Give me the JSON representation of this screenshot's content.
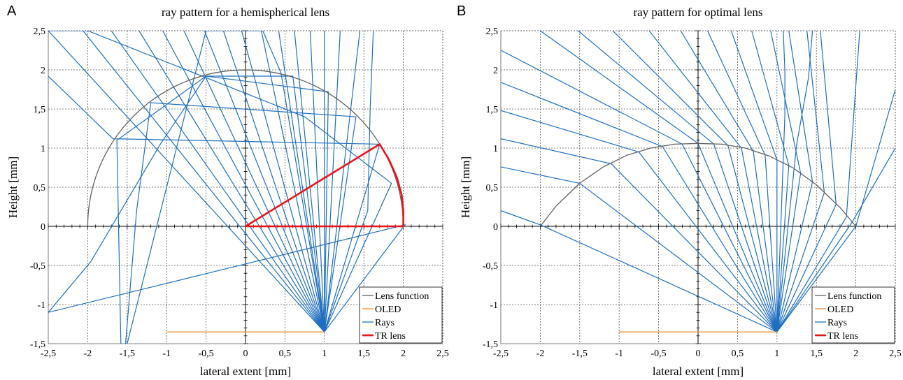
{
  "panels": [
    {
      "letter": "A",
      "title": "ray pattern for a hemispherical lens"
    },
    {
      "letter": "B",
      "title": "ray pattern for optimal lens"
    }
  ],
  "colors": {
    "lens_function": "#606060",
    "oled": "#e8913a",
    "rays": "#1f6fbf",
    "tr_lens": "#e8141a"
  },
  "chart_data": [
    {
      "type": "line",
      "title": "ray pattern for a hemispherical lens",
      "xlabel": "lateral extent [mm]",
      "ylabel": "Height [mm]",
      "xlim": [
        -2.5,
        2.5
      ],
      "ylim": [
        -1.5,
        2.5
      ],
      "xticks": [
        -2.5,
        -2,
        -1.5,
        -1,
        -0.5,
        0,
        0.5,
        1,
        1.5,
        2,
        2.5
      ],
      "xtick_labels": [
        "-2,5",
        "-2",
        "-1,5",
        "-1",
        "-0,5",
        "0",
        "0,5",
        "1",
        "1,5",
        "2",
        "2,5"
      ],
      "yticks": [
        -1.5,
        -1,
        -0.5,
        0,
        0.5,
        1,
        1.5,
        2,
        2.5
      ],
      "ytick_labels": [
        "-1,5",
        "-1",
        "-0,5",
        "0",
        "0,5",
        "1",
        "1,5",
        "2",
        "2,5"
      ],
      "grid": true,
      "legend_position": "bottom-right",
      "legend": [
        "Lens function",
        "OLED",
        "Rays",
        "TR lens"
      ],
      "source": [
        1,
        -1.35
      ],
      "lens_function": {
        "shape": "semicircle",
        "center": [
          0,
          0
        ],
        "radius": 2
      },
      "oled": {
        "x": [
          -1,
          1
        ],
        "y": [
          -1.35,
          -1.35
        ]
      },
      "tr_lens": {
        "x": [
          0,
          2,
          2,
          1.98,
          1.92,
          1.82,
          1.7,
          0
        ],
        "y": [
          0,
          0,
          0.2,
          0.4,
          0.62,
          0.85,
          1.05,
          0
        ]
      },
      "rays": [
        {
          "x": [
            1,
            2.02,
            -2.5
          ],
          "y": [
            -1.35,
            0.02,
            -1.1
          ]
        },
        {
          "x": [
            1,
            1.85,
            0.75,
            -2.0,
            -2.5
          ],
          "y": [
            -1.35,
            0.55,
            1.4,
            2.5,
            2.5
          ]
        },
        {
          "x": [
            1,
            1.7,
            -1.68,
            -2.5
          ],
          "y": [
            -1.35,
            1.05,
            1.12,
            1.92
          ]
        },
        {
          "x": [
            1,
            1.4,
            -1.2,
            -1.38,
            -1.52
          ],
          "y": [
            -1.35,
            1.4,
            1.58,
            0.2,
            -1.5
          ]
        },
        {
          "x": [
            1,
            1.05,
            -0.5,
            -1.08,
            -1.96,
            -2.5
          ],
          "y": [
            -1.35,
            1.72,
            1.92,
            1.05,
            -0.45,
            -1.1
          ]
        },
        {
          "x": [
            1,
            0.6,
            -0.5,
            -1.63,
            -1.58
          ],
          "y": [
            -1.35,
            1.92,
            1.92,
            1.1,
            -1.5
          ]
        },
        {
          "x": [
            1,
            0.45,
            0.22,
            -0.5,
            -1.5
          ],
          "y": [
            -1.35,
            1.96,
            2.5,
            2.5,
            -1.5
          ]
        },
        {
          "x": [
            1,
            -2.5
          ],
          "y": [
            -1.35,
            2.5
          ]
        },
        {
          "x": [
            1,
            -2.06
          ],
          "y": [
            -1.35,
            2.5
          ]
        },
        {
          "x": [
            1,
            -1.7
          ],
          "y": [
            -1.35,
            2.5
          ]
        },
        {
          "x": [
            1,
            -1.35
          ],
          "y": [
            -1.35,
            2.5
          ]
        },
        {
          "x": [
            1,
            -1.05
          ],
          "y": [
            -1.35,
            2.5
          ]
        },
        {
          "x": [
            1,
            -0.78
          ],
          "y": [
            -1.35,
            2.5
          ]
        },
        {
          "x": [
            1,
            -0.52
          ],
          "y": [
            -1.35,
            2.5
          ]
        },
        {
          "x": [
            1,
            -0.28
          ],
          "y": [
            -1.35,
            2.5
          ]
        },
        {
          "x": [
            1,
            -0.05
          ],
          "y": [
            -1.35,
            2.5
          ]
        },
        {
          "x": [
            1,
            0.2
          ],
          "y": [
            -1.35,
            2.5
          ]
        },
        {
          "x": [
            1,
            0.42
          ],
          "y": [
            -1.35,
            2.5
          ]
        },
        {
          "x": [
            1,
            0.62
          ],
          "y": [
            -1.35,
            2.5
          ]
        },
        {
          "x": [
            1,
            0.82
          ],
          "y": [
            -1.35,
            2.5
          ]
        },
        {
          "x": [
            1,
            1.0
          ],
          "y": [
            -1.35,
            2.5
          ]
        },
        {
          "x": [
            1,
            1.2
          ],
          "y": [
            -1.35,
            2.5
          ]
        },
        {
          "x": [
            1,
            1.45
          ],
          "y": [
            -1.35,
            2.5
          ]
        },
        {
          "x": [
            1,
            1.55,
            1.58,
            1.62
          ],
          "y": [
            -1.35,
            0.2,
            1.5,
            2.5
          ]
        }
      ]
    },
    {
      "type": "line",
      "title": "ray pattern for optimal lens",
      "xlabel": "lateral extent [mm]",
      "ylabel": "Height [mm]",
      "xlim": [
        -2.5,
        2.5
      ],
      "ylim": [
        -1.5,
        2.5
      ],
      "xticks": [
        -2.5,
        -2,
        -1.5,
        -1,
        -0.5,
        0,
        0.5,
        1,
        1.5,
        2,
        2.5
      ],
      "xtick_labels": [
        "-2,5",
        "-2",
        "-1,5",
        "-1",
        "-0,5",
        "0",
        "0,5",
        "1",
        "1,5",
        "2",
        "2,5"
      ],
      "yticks": [
        -1.5,
        -1,
        -0.5,
        0,
        0.5,
        1,
        1.5,
        2,
        2.5
      ],
      "ytick_labels": [
        "-1,5",
        "-1",
        "-0,5",
        "0",
        "0,5",
        "1",
        "1,5",
        "2",
        "2,5"
      ],
      "grid": true,
      "legend_position": "bottom-right",
      "legend": [
        "Lens function",
        "OLED",
        "Rays",
        "TR lens"
      ],
      "source": [
        1,
        -1.35
      ],
      "oled": {
        "x": [
          -1,
          1
        ],
        "y": [
          -1.35,
          -1.35
        ]
      },
      "lens_function": {
        "x": [
          -2.0,
          -1.8,
          -1.5,
          -1.2,
          -0.9,
          -0.6,
          -0.3,
          0,
          0.3,
          0.6,
          0.9,
          1.2,
          1.5,
          1.8,
          2.0
        ],
        "y": [
          0,
          0.26,
          0.55,
          0.76,
          0.91,
          1.0,
          1.05,
          1.06,
          1.05,
          1.0,
          0.9,
          0.75,
          0.53,
          0.24,
          0
        ]
      },
      "rays": [
        {
          "x": [
            1,
            -2.0,
            -2.5
          ],
          "y": [
            -1.35,
            0.02,
            0.2
          ]
        },
        {
          "x": [
            1,
            -1.5,
            -2.5
          ],
          "y": [
            -1.35,
            0.55,
            0.76
          ]
        },
        {
          "x": [
            1,
            -1.1,
            -2.5
          ],
          "y": [
            -1.35,
            0.8,
            1.12
          ]
        },
        {
          "x": [
            1,
            -0.75,
            -2.5
          ],
          "y": [
            -1.35,
            0.95,
            1.48
          ]
        },
        {
          "x": [
            1,
            -0.45,
            -2.5
          ],
          "y": [
            -1.35,
            1.02,
            1.84
          ]
        },
        {
          "x": [
            1,
            -0.2,
            -2.5
          ],
          "y": [
            -1.35,
            1.05,
            2.25
          ]
        },
        {
          "x": [
            1,
            0.0,
            -2.0
          ],
          "y": [
            -1.35,
            1.06,
            2.5
          ]
        },
        {
          "x": [
            1,
            0.2,
            -1.52
          ],
          "y": [
            -1.35,
            1.05,
            2.5
          ]
        },
        {
          "x": [
            1,
            0.38,
            -1.08
          ],
          "y": [
            -1.35,
            1.03,
            2.5
          ]
        },
        {
          "x": [
            1,
            0.55,
            -0.62
          ],
          "y": [
            -1.35,
            1.0,
            2.5
          ]
        },
        {
          "x": [
            1,
            0.7,
            -0.22
          ],
          "y": [
            -1.35,
            0.96,
            2.5
          ]
        },
        {
          "x": [
            1,
            0.85,
            0.12
          ],
          "y": [
            -1.35,
            0.91,
            2.5
          ]
        },
        {
          "x": [
            1,
            1.0,
            0.42
          ],
          "y": [
            -1.35,
            0.85,
            2.5
          ]
        },
        {
          "x": [
            1,
            1.15,
            0.68
          ],
          "y": [
            -1.35,
            0.78,
            2.5
          ]
        },
        {
          "x": [
            1,
            1.3,
            0.92
          ],
          "y": [
            -1.35,
            0.68,
            2.5
          ]
        },
        {
          "x": [
            1,
            1.45,
            1.15
          ],
          "y": [
            -1.35,
            0.57,
            2.5
          ]
        },
        {
          "x": [
            1,
            1.6,
            1.38
          ],
          "y": [
            -1.35,
            0.43,
            2.5
          ]
        },
        {
          "x": [
            1,
            1.75,
            1.55
          ],
          "y": [
            -1.35,
            0.28,
            2.5
          ]
        },
        {
          "x": [
            1,
            1.88,
            2.05
          ],
          "y": [
            -1.35,
            0.12,
            2.5
          ]
        },
        {
          "x": [
            1,
            2.0,
            2.5
          ],
          "y": [
            -1.35,
            0.0,
            1.75
          ]
        },
        {
          "x": [
            1,
            1.95,
            2.5
          ],
          "y": [
            -1.35,
            0.05,
            1.0
          ]
        },
        {
          "x": [
            1,
            1.25,
            1.4,
            1.45
          ],
          "y": [
            -1.35,
            1.05,
            1.9,
            2.5
          ]
        },
        {
          "x": [
            1,
            1.1,
            1.1,
            1.08
          ],
          "y": [
            -1.35,
            1.42,
            2.0,
            2.5
          ]
        }
      ]
    }
  ]
}
